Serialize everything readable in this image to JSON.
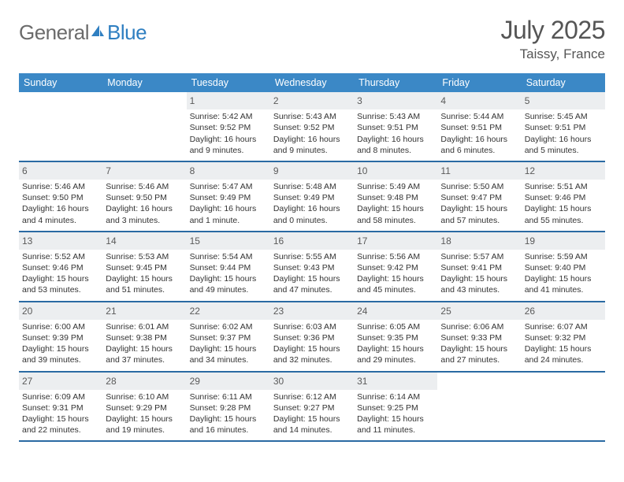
{
  "brand": {
    "part1": "General",
    "part2": "Blue"
  },
  "title": "July 2025",
  "location": "Taissy, France",
  "colors": {
    "header_bg": "#3b88c6",
    "week_border": "#2a6aa3",
    "daynum_bg": "#eceef0",
    "text": "#333333",
    "muted": "#555555",
    "logo_gray": "#6b6b6b",
    "logo_blue": "#2f7fc1"
  },
  "weekdays": [
    "Sunday",
    "Monday",
    "Tuesday",
    "Wednesday",
    "Thursday",
    "Friday",
    "Saturday"
  ],
  "weeks": [
    [
      {
        "n": "",
        "lines": []
      },
      {
        "n": "",
        "lines": []
      },
      {
        "n": "1",
        "lines": [
          "Sunrise: 5:42 AM",
          "Sunset: 9:52 PM",
          "Daylight: 16 hours",
          "and 9 minutes."
        ]
      },
      {
        "n": "2",
        "lines": [
          "Sunrise: 5:43 AM",
          "Sunset: 9:52 PM",
          "Daylight: 16 hours",
          "and 9 minutes."
        ]
      },
      {
        "n": "3",
        "lines": [
          "Sunrise: 5:43 AM",
          "Sunset: 9:51 PM",
          "Daylight: 16 hours",
          "and 8 minutes."
        ]
      },
      {
        "n": "4",
        "lines": [
          "Sunrise: 5:44 AM",
          "Sunset: 9:51 PM",
          "Daylight: 16 hours",
          "and 6 minutes."
        ]
      },
      {
        "n": "5",
        "lines": [
          "Sunrise: 5:45 AM",
          "Sunset: 9:51 PM",
          "Daylight: 16 hours",
          "and 5 minutes."
        ]
      }
    ],
    [
      {
        "n": "6",
        "lines": [
          "Sunrise: 5:46 AM",
          "Sunset: 9:50 PM",
          "Daylight: 16 hours",
          "and 4 minutes."
        ]
      },
      {
        "n": "7",
        "lines": [
          "Sunrise: 5:46 AM",
          "Sunset: 9:50 PM",
          "Daylight: 16 hours",
          "and 3 minutes."
        ]
      },
      {
        "n": "8",
        "lines": [
          "Sunrise: 5:47 AM",
          "Sunset: 9:49 PM",
          "Daylight: 16 hours",
          "and 1 minute."
        ]
      },
      {
        "n": "9",
        "lines": [
          "Sunrise: 5:48 AM",
          "Sunset: 9:49 PM",
          "Daylight: 16 hours",
          "and 0 minutes."
        ]
      },
      {
        "n": "10",
        "lines": [
          "Sunrise: 5:49 AM",
          "Sunset: 9:48 PM",
          "Daylight: 15 hours",
          "and 58 minutes."
        ]
      },
      {
        "n": "11",
        "lines": [
          "Sunrise: 5:50 AM",
          "Sunset: 9:47 PM",
          "Daylight: 15 hours",
          "and 57 minutes."
        ]
      },
      {
        "n": "12",
        "lines": [
          "Sunrise: 5:51 AM",
          "Sunset: 9:46 PM",
          "Daylight: 15 hours",
          "and 55 minutes."
        ]
      }
    ],
    [
      {
        "n": "13",
        "lines": [
          "Sunrise: 5:52 AM",
          "Sunset: 9:46 PM",
          "Daylight: 15 hours",
          "and 53 minutes."
        ]
      },
      {
        "n": "14",
        "lines": [
          "Sunrise: 5:53 AM",
          "Sunset: 9:45 PM",
          "Daylight: 15 hours",
          "and 51 minutes."
        ]
      },
      {
        "n": "15",
        "lines": [
          "Sunrise: 5:54 AM",
          "Sunset: 9:44 PM",
          "Daylight: 15 hours",
          "and 49 minutes."
        ]
      },
      {
        "n": "16",
        "lines": [
          "Sunrise: 5:55 AM",
          "Sunset: 9:43 PM",
          "Daylight: 15 hours",
          "and 47 minutes."
        ]
      },
      {
        "n": "17",
        "lines": [
          "Sunrise: 5:56 AM",
          "Sunset: 9:42 PM",
          "Daylight: 15 hours",
          "and 45 minutes."
        ]
      },
      {
        "n": "18",
        "lines": [
          "Sunrise: 5:57 AM",
          "Sunset: 9:41 PM",
          "Daylight: 15 hours",
          "and 43 minutes."
        ]
      },
      {
        "n": "19",
        "lines": [
          "Sunrise: 5:59 AM",
          "Sunset: 9:40 PM",
          "Daylight: 15 hours",
          "and 41 minutes."
        ]
      }
    ],
    [
      {
        "n": "20",
        "lines": [
          "Sunrise: 6:00 AM",
          "Sunset: 9:39 PM",
          "Daylight: 15 hours",
          "and 39 minutes."
        ]
      },
      {
        "n": "21",
        "lines": [
          "Sunrise: 6:01 AM",
          "Sunset: 9:38 PM",
          "Daylight: 15 hours",
          "and 37 minutes."
        ]
      },
      {
        "n": "22",
        "lines": [
          "Sunrise: 6:02 AM",
          "Sunset: 9:37 PM",
          "Daylight: 15 hours",
          "and 34 minutes."
        ]
      },
      {
        "n": "23",
        "lines": [
          "Sunrise: 6:03 AM",
          "Sunset: 9:36 PM",
          "Daylight: 15 hours",
          "and 32 minutes."
        ]
      },
      {
        "n": "24",
        "lines": [
          "Sunrise: 6:05 AM",
          "Sunset: 9:35 PM",
          "Daylight: 15 hours",
          "and 29 minutes."
        ]
      },
      {
        "n": "25",
        "lines": [
          "Sunrise: 6:06 AM",
          "Sunset: 9:33 PM",
          "Daylight: 15 hours",
          "and 27 minutes."
        ]
      },
      {
        "n": "26",
        "lines": [
          "Sunrise: 6:07 AM",
          "Sunset: 9:32 PM",
          "Daylight: 15 hours",
          "and 24 minutes."
        ]
      }
    ],
    [
      {
        "n": "27",
        "lines": [
          "Sunrise: 6:09 AM",
          "Sunset: 9:31 PM",
          "Daylight: 15 hours",
          "and 22 minutes."
        ]
      },
      {
        "n": "28",
        "lines": [
          "Sunrise: 6:10 AM",
          "Sunset: 9:29 PM",
          "Daylight: 15 hours",
          "and 19 minutes."
        ]
      },
      {
        "n": "29",
        "lines": [
          "Sunrise: 6:11 AM",
          "Sunset: 9:28 PM",
          "Daylight: 15 hours",
          "and 16 minutes."
        ]
      },
      {
        "n": "30",
        "lines": [
          "Sunrise: 6:12 AM",
          "Sunset: 9:27 PM",
          "Daylight: 15 hours",
          "and 14 minutes."
        ]
      },
      {
        "n": "31",
        "lines": [
          "Sunrise: 6:14 AM",
          "Sunset: 9:25 PM",
          "Daylight: 15 hours",
          "and 11 minutes."
        ]
      },
      {
        "n": "",
        "lines": []
      },
      {
        "n": "",
        "lines": []
      }
    ]
  ]
}
